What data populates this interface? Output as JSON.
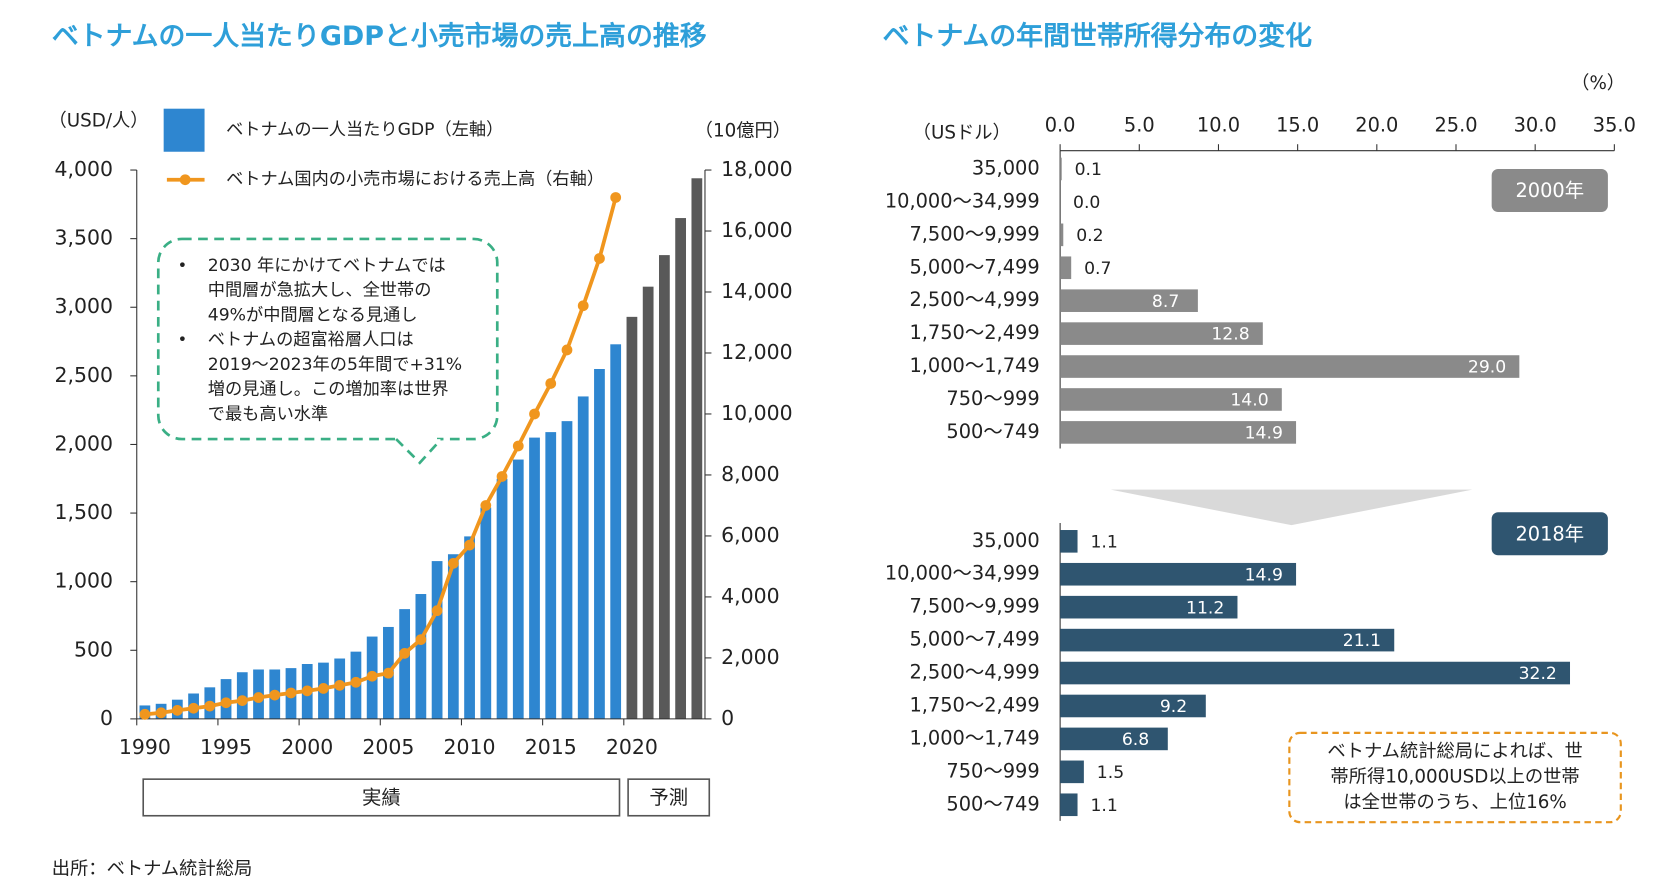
{
  "chart_data": [
    {
      "type": "bar-line",
      "title": "ベトナムの一人当たりGDPと小売市場の売上高の推移",
      "y_label": "（USD/人）",
      "y2_label": "（10億円）",
      "categories": [
        "1990",
        null,
        null,
        null,
        null,
        "1995",
        null,
        null,
        null,
        null,
        "2000",
        null,
        null,
        null,
        null,
        "2005",
        null,
        null,
        null,
        null,
        "2010",
        null,
        null,
        null,
        null,
        "2015",
        null,
        null,
        null,
        null,
        "2020",
        null,
        null,
        null,
        null
      ],
      "series": [
        {
          "name": "ベトナムの一人当たりGDP（左軸）",
          "kind": "bar",
          "color": "#2e86d0",
          "colors": [
            "#2e86d0",
            "#2e86d0",
            "#2e86d0",
            "#2e86d0",
            "#2e86d0",
            "#2e86d0",
            "#2e86d0",
            "#2e86d0",
            "#2e86d0",
            "#2e86d0",
            "#2e86d0",
            "#2e86d0",
            "#2e86d0",
            "#2e86d0",
            "#2e86d0",
            "#2e86d0",
            "#2e86d0",
            "#2e86d0",
            "#2e86d0",
            "#2e86d0",
            "#2e86d0",
            "#2e86d0",
            "#2e86d0",
            "#2e86d0",
            "#2e86d0",
            "#2e86d0",
            "#2e86d0",
            "#2e86d0",
            "#2e86d0",
            "#2e86d0",
            "#595959",
            "#595959",
            "#595959",
            "#595959",
            "#595959"
          ],
          "values": [
            98,
            110,
            140,
            185,
            230,
            290,
            340,
            360,
            360,
            370,
            400,
            410,
            440,
            490,
            600,
            670,
            800,
            910,
            1150,
            1200,
            1330,
            1540,
            1750,
            1890,
            2050,
            2090,
            2170,
            2350,
            2550,
            2730,
            2930,
            3150,
            3380,
            3650,
            3940
          ]
        },
        {
          "name": "ベトナム国内の小売市場における売上高（右軸）",
          "kind": "line",
          "axis": "y2",
          "color": "#f0961e",
          "values": [
            150,
            200,
            280,
            350,
            420,
            530,
            600,
            700,
            780,
            850,
            920,
            1000,
            1100,
            1200,
            1400,
            1500,
            2150,
            2600,
            3550,
            5100,
            5700,
            7000,
            7950,
            8950,
            10000,
            11000,
            12100,
            13550,
            15100,
            17100,
            null,
            null,
            null,
            null,
            null
          ]
        }
      ],
      "ylim": [
        0,
        4000
      ],
      "yticks": [
        0,
        500,
        {
          "value": 1000,
          "label": "1,000"
        },
        {
          "value": 1500,
          "label": "1,500"
        },
        {
          "value": 2000,
          "label": "2,000"
        },
        {
          "value": 2500,
          "label": "2,500"
        },
        {
          "value": 3000,
          "label": "3,000"
        },
        {
          "value": 3500,
          "label": "3,500"
        },
        {
          "value": 4000,
          "label": "4,000"
        }
      ],
      "y2lim": [
        0,
        18000
      ],
      "y2ticks": [
        0,
        {
          "value": 2000,
          "label": "2,000"
        },
        {
          "value": 4000,
          "label": "4,000"
        },
        {
          "value": 6000,
          "label": "6,000"
        },
        {
          "value": 8000,
          "label": "8,000"
        },
        {
          "value": 10000,
          "label": "10,000"
        },
        {
          "value": 12000,
          "label": "12,000"
        },
        {
          "value": 14000,
          "label": "14,000"
        },
        {
          "value": 16000,
          "label": "16,000"
        },
        {
          "value": 18000,
          "label": "18,000"
        }
      ],
      "period_labels": [
        "実績",
        "予測"
      ],
      "annotation": [
        [
          "2030 年にかけてベトナムでは",
          "中間層が急拡大し、全世帯の",
          "49%が中間層となる見通し"
        ],
        [
          "ベトナムの超富裕層人口は",
          "2019～2023年の5年間で+31%",
          "増の見通し。この増加率は世界",
          "で最も高い水準"
        ]
      ]
    },
    {
      "type": "hbar-panels",
      "title": "ベトナムの年間世帯所得分布の変化",
      "x_label": "（%）",
      "y_label": "（USドル）",
      "categories": [
        "35,000",
        "10,000～34,999",
        "7,500～9,999",
        "5,000～7,499",
        "2,500～4,999",
        "1,750～2,499",
        "1,000～1,749",
        "750～999",
        "500～749"
      ],
      "xlim": [
        0,
        35
      ],
      "xticks": [
        {
          "value": 0,
          "label": "0.0"
        },
        {
          "value": 5,
          "label": "5.0"
        },
        {
          "value": 10,
          "label": "10.0"
        },
        {
          "value": 15,
          "label": "15.0"
        },
        {
          "value": 20,
          "label": "20.0"
        },
        {
          "value": 25,
          "label": "25.0"
        },
        {
          "value": 30,
          "label": "30.0"
        },
        {
          "value": 35,
          "label": "35.0"
        }
      ],
      "series": [
        {
          "name": "2000年",
          "color": "#8a8a8a",
          "values": [
            0.1,
            0.0,
            0.2,
            0.7,
            8.7,
            12.8,
            29.0,
            14.0,
            14.9
          ],
          "value_labels": [
            "0.1",
            "0.0",
            "0.2",
            "0.7",
            "8.7",
            "12.8",
            "29.0",
            "14.0",
            "14.9"
          ]
        },
        {
          "name": "2018年",
          "color": "#2f5570",
          "values": [
            1.1,
            14.9,
            11.2,
            21.1,
            32.2,
            9.2,
            6.8,
            1.5,
            1.1
          ]
        }
      ],
      "annotation": [
        "ベトナム統計総局によれば、世",
        "帯所得10,000USD以上の世帯",
        "は全世帯のうち、上位16%"
      ]
    }
  ],
  "source": "出所：ベトナム統計総局"
}
